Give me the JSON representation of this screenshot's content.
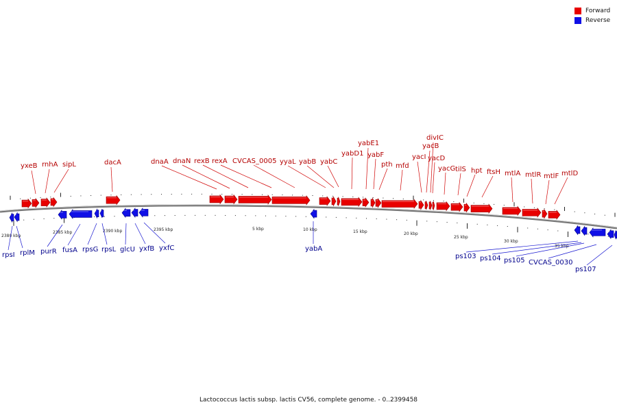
{
  "diagram": {
    "caption": "Lactococcus lactis subsp. lactis CV56, complete genome. - 0..2399458",
    "legend": [
      {
        "label": "Forward",
        "color": "#e80000"
      },
      {
        "label": "Reverse",
        "color": "#1010e6"
      }
    ],
    "colors": {
      "forward_fill": "#e80000",
      "forward_dark": "#990000",
      "reverse_fill": "#1010e6",
      "reverse_dark": "#00008a",
      "backbone": "#777777",
      "forward_label": "#b40000",
      "reverse_label": "#00008c"
    },
    "scale_labels": [
      "2380 kbp",
      "2385 kbp",
      "2390 kbp",
      "2395 kbp",
      "5 kbp",
      "10 kbp",
      "15 kbp",
      "20 kbp",
      "25 kbp",
      "30 kbp",
      "35 kbp"
    ],
    "forward_genes": [
      "yxeB",
      "rnhA",
      "sipL",
      "dacA",
      "dnaA",
      "dnaN",
      "rexB",
      "rexA",
      "CVCAS_0005",
      "yyaL",
      "yabB",
      "yabC",
      "yabD1",
      "yabE1",
      "yabF",
      "pth",
      "mfd",
      "yacI",
      "yacB",
      "divIC",
      "yacD",
      "yacG",
      "tilS",
      "hpt",
      "ftsH",
      "mtlA",
      "mtlR",
      "mtlF",
      "mtlD"
    ],
    "reverse_genes": [
      "rpsI",
      "rplM",
      "purR",
      "fusA",
      "rpsG",
      "rpsL",
      "glcU",
      "yxfB",
      "yxfC",
      "yabA",
      "ps103",
      "ps104",
      "ps105",
      "CVCAS_0030",
      "ps107"
    ]
  }
}
